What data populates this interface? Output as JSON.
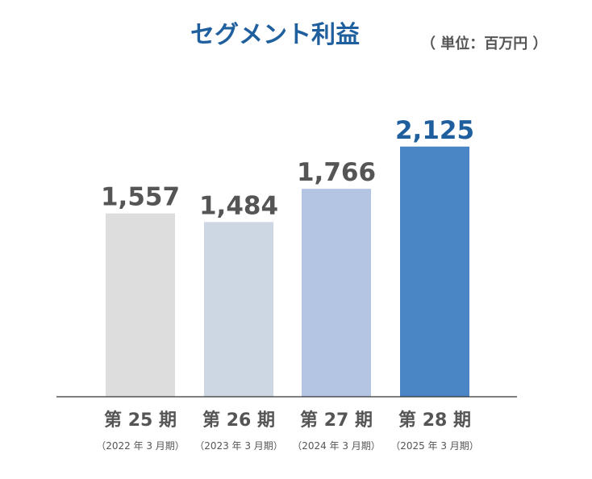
{
  "chart_data": {
    "type": "bar",
    "title": "セグメント利益",
    "subtitle": "（ 単位：百万円 ）",
    "categories": [
      "第 25 期",
      "第 26 期",
      "第 27 期",
      "第 28 期"
    ],
    "sublabels": [
      "（2022 年 3 月期）",
      "（2023 年 3 月期）",
      "（2024 年 3 月期）",
      "（2025 年 3 月期）"
    ],
    "values": [
      1557,
      1484,
      1766,
      2125
    ],
    "value_labels": [
      "1,557",
      "1,484",
      "1,766",
      "2,125"
    ],
    "ylim": [
      0,
      2500
    ],
    "grid": false,
    "colors": {
      "bars": [
        "#dddddd",
        "#cdd7e3",
        "#b3c5e3",
        "#4a86c5"
      ],
      "value_labels": [
        "#555555",
        "#555555",
        "#555555",
        "#1f5f9e"
      ],
      "title": "#1f5f9e",
      "axis": "#333333"
    }
  }
}
